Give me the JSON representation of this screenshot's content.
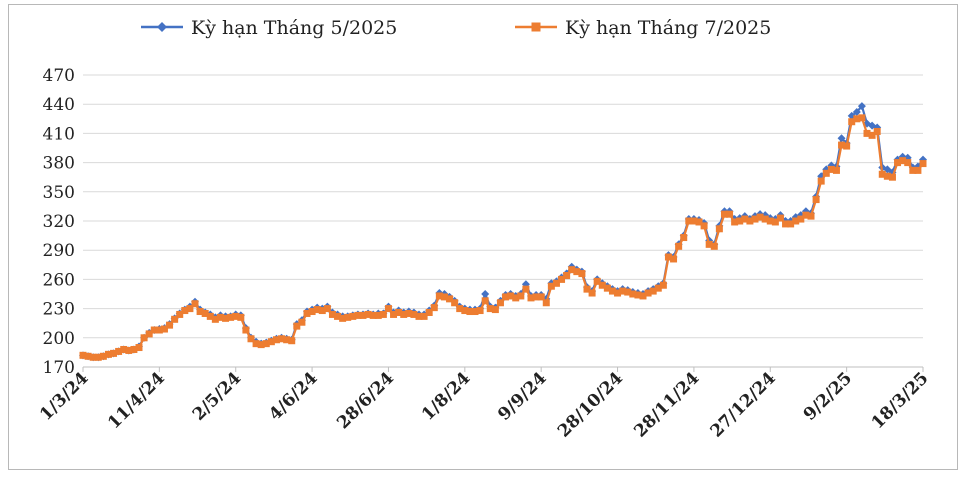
{
  "chart_data": {
    "type": "line",
    "title": "",
    "xlabel": "",
    "ylabel": "",
    "ylim": [
      170,
      470
    ],
    "yticks": [
      170,
      200,
      230,
      260,
      290,
      320,
      350,
      380,
      410,
      440,
      470
    ],
    "xtick_labels": [
      "1/3/24",
      "11/4/24",
      "2/5/24",
      "4/6/24",
      "28/6/24",
      "1/8/24",
      "9/9/24",
      "28/10/24",
      "28/11/24",
      "27/12/24",
      "9/2/25",
      "18/3/25"
    ],
    "grid": "horizontal",
    "legend_position": "top",
    "series": [
      {
        "name": "Kỳ hạn Tháng 5/2025",
        "color": "#4472C4",
        "marker": "diamond",
        "values": [
          182,
          181,
          180,
          180,
          181,
          183,
          184,
          186,
          188,
          187,
          188,
          191,
          200,
          205,
          208,
          209,
          210,
          214,
          220,
          225,
          229,
          232,
          237,
          229,
          226,
          224,
          221,
          223,
          222,
          222,
          224,
          223,
          210,
          200,
          196,
          194,
          195,
          197,
          199,
          200,
          199,
          198,
          214,
          218,
          227,
          229,
          231,
          230,
          232,
          226,
          224,
          222,
          222,
          223,
          224,
          224,
          225,
          224,
          225,
          225,
          232,
          226,
          228,
          226,
          227,
          226,
          224,
          224,
          228,
          233,
          246,
          245,
          242,
          238,
          232,
          230,
          229,
          229,
          230,
          245,
          232,
          231,
          238,
          244,
          245,
          243,
          245,
          255,
          243,
          244,
          244,
          240,
          256,
          258,
          262,
          266,
          273,
          270,
          268,
          252,
          248,
          260,
          256,
          253,
          250,
          248,
          250,
          249,
          247,
          246,
          245,
          248,
          250,
          253,
          256,
          285,
          283,
          296,
          305,
          322,
          322,
          321,
          318,
          300,
          296,
          315,
          330,
          330,
          322,
          323,
          325,
          322,
          325,
          327,
          326,
          323,
          322,
          326,
          320,
          320,
          324,
          326,
          330,
          328,
          345,
          366,
          373,
          377,
          376,
          405,
          400,
          428,
          432,
          438,
          420,
          418,
          416,
          375,
          373,
          370,
          383,
          386,
          385,
          375,
          376,
          383
        ]
      },
      {
        "name": "Kỳ hạn Tháng 7/2025",
        "color": "#ED7D31",
        "marker": "square",
        "values": [
          182,
          181,
          180,
          180,
          181,
          183,
          184,
          186,
          188,
          187,
          188,
          190,
          200,
          204,
          208,
          208,
          209,
          213,
          219,
          224,
          228,
          230,
          235,
          227,
          225,
          222,
          219,
          221,
          220,
          221,
          222,
          221,
          208,
          199,
          194,
          193,
          194,
          196,
          198,
          199,
          198,
          197,
          212,
          216,
          225,
          227,
          229,
          228,
          230,
          224,
          222,
          220,
          221,
          222,
          223,
          223,
          224,
          223,
          223,
          224,
          230,
          224,
          226,
          224,
          225,
          224,
          222,
          222,
          226,
          231,
          243,
          242,
          240,
          236,
          230,
          228,
          227,
          227,
          228,
          238,
          230,
          229,
          236,
          242,
          243,
          241,
          243,
          250,
          241,
          242,
          242,
          236,
          253,
          256,
          260,
          264,
          270,
          268,
          266,
          250,
          246,
          258,
          254,
          251,
          248,
          246,
          248,
          247,
          245,
          244,
          243,
          246,
          248,
          251,
          254,
          283,
          281,
          294,
          303,
          320,
          320,
          319,
          315,
          296,
          294,
          312,
          327,
          327,
          319,
          320,
          322,
          320,
          322,
          324,
          322,
          320,
          319,
          323,
          317,
          317,
          320,
          322,
          326,
          325,
          342,
          361,
          369,
          373,
          372,
          398,
          397,
          422,
          425,
          426,
          410,
          408,
          412,
          368,
          366,
          365,
          380,
          382,
          380,
          372,
          372,
          379
        ]
      }
    ]
  }
}
